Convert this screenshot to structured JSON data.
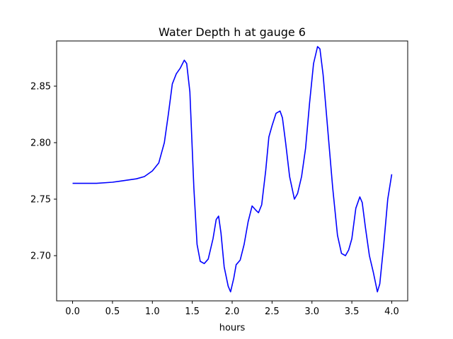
{
  "chart_data": {
    "type": "line",
    "title": "Water Depth h at gauge 6",
    "xlabel": "hours",
    "ylabel": "",
    "xlim": [
      -0.2,
      4.2
    ],
    "ylim": [
      2.66,
      2.89
    ],
    "xticks": [
      0.0,
      0.5,
      1.0,
      1.5,
      2.0,
      2.5,
      3.0,
      3.5,
      4.0
    ],
    "xtick_labels": [
      "0.0",
      "0.5",
      "1.0",
      "1.5",
      "2.0",
      "2.5",
      "3.0",
      "3.5",
      "4.0"
    ],
    "yticks": [
      2.7,
      2.75,
      2.8,
      2.85
    ],
    "ytick_labels": [
      "2.70",
      "2.75",
      "2.80",
      "2.85"
    ],
    "grid": false,
    "series": [
      {
        "color": "#0000ff",
        "points": [
          [
            0.0,
            2.764
          ],
          [
            0.3,
            2.764
          ],
          [
            0.5,
            2.765
          ],
          [
            0.6,
            2.766
          ],
          [
            0.8,
            2.768
          ],
          [
            0.9,
            2.77
          ],
          [
            1.0,
            2.775
          ],
          [
            1.08,
            2.782
          ],
          [
            1.15,
            2.8
          ],
          [
            1.2,
            2.825
          ],
          [
            1.25,
            2.852
          ],
          [
            1.3,
            2.861
          ],
          [
            1.35,
            2.866
          ],
          [
            1.4,
            2.873
          ],
          [
            1.43,
            2.87
          ],
          [
            1.47,
            2.845
          ],
          [
            1.52,
            2.76
          ],
          [
            1.56,
            2.71
          ],
          [
            1.6,
            2.695
          ],
          [
            1.65,
            2.693
          ],
          [
            1.7,
            2.697
          ],
          [
            1.76,
            2.715
          ],
          [
            1.8,
            2.732
          ],
          [
            1.83,
            2.735
          ],
          [
            1.86,
            2.72
          ],
          [
            1.9,
            2.69
          ],
          [
            1.95,
            2.673
          ],
          [
            1.98,
            2.668
          ],
          [
            2.02,
            2.68
          ],
          [
            2.05,
            2.692
          ],
          [
            2.1,
            2.696
          ],
          [
            2.15,
            2.71
          ],
          [
            2.2,
            2.73
          ],
          [
            2.25,
            2.744
          ],
          [
            2.3,
            2.74
          ],
          [
            2.33,
            2.738
          ],
          [
            2.37,
            2.745
          ],
          [
            2.42,
            2.775
          ],
          [
            2.46,
            2.805
          ],
          [
            2.5,
            2.815
          ],
          [
            2.55,
            2.826
          ],
          [
            2.6,
            2.828
          ],
          [
            2.63,
            2.822
          ],
          [
            2.67,
            2.8
          ],
          [
            2.72,
            2.77
          ],
          [
            2.78,
            2.75
          ],
          [
            2.82,
            2.755
          ],
          [
            2.87,
            2.77
          ],
          [
            2.92,
            2.795
          ],
          [
            2.97,
            2.835
          ],
          [
            3.02,
            2.87
          ],
          [
            3.07,
            2.885
          ],
          [
            3.1,
            2.883
          ],
          [
            3.14,
            2.86
          ],
          [
            3.2,
            2.81
          ],
          [
            3.26,
            2.76
          ],
          [
            3.32,
            2.718
          ],
          [
            3.37,
            2.702
          ],
          [
            3.42,
            2.7
          ],
          [
            3.46,
            2.705
          ],
          [
            3.5,
            2.715
          ],
          [
            3.55,
            2.742
          ],
          [
            3.6,
            2.752
          ],
          [
            3.63,
            2.747
          ],
          [
            3.67,
            2.725
          ],
          [
            3.72,
            2.7
          ],
          [
            3.77,
            2.685
          ],
          [
            3.82,
            2.668
          ],
          [
            3.85,
            2.675
          ],
          [
            3.9,
            2.71
          ],
          [
            3.95,
            2.75
          ],
          [
            4.0,
            2.772
          ]
        ]
      }
    ]
  }
}
